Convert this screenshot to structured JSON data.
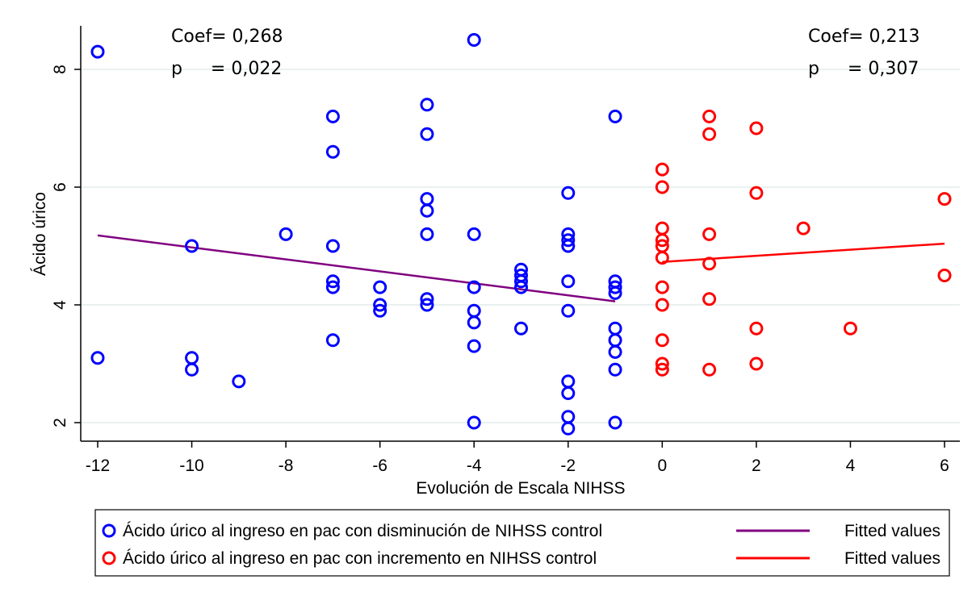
{
  "chart_data": {
    "type": "scatter",
    "xlabel": "Evolución de Escala NIHSS",
    "ylabel": "Ácido úrico",
    "xlim": [
      -12,
      6
    ],
    "ylim": [
      1.8,
      8.7
    ],
    "xticks": [
      "-12",
      "-10",
      "-8",
      "-6",
      "-4",
      "-2",
      "0",
      "2",
      "4",
      "6"
    ],
    "yticks": [
      "2",
      "4",
      "6",
      "8"
    ],
    "grid": "horizontal",
    "series": [
      {
        "name": "Ácido úrico al ingreso en pac con disminución de NIHSS control",
        "color": "#0000ff",
        "marker": "hollow-circle",
        "points": [
          [
            -12,
            8.3
          ],
          [
            -12,
            3.1
          ],
          [
            -10,
            5.0
          ],
          [
            -10,
            3.1
          ],
          [
            -10,
            2.9
          ],
          [
            -9,
            2.7
          ],
          [
            -8,
            5.2
          ],
          [
            -7,
            7.2
          ],
          [
            -7,
            6.6
          ],
          [
            -7,
            5.0
          ],
          [
            -7,
            4.4
          ],
          [
            -7,
            4.3
          ],
          [
            -7,
            3.4
          ],
          [
            -6,
            4.3
          ],
          [
            -6,
            4.0
          ],
          [
            -6,
            3.9
          ],
          [
            -5,
            7.4
          ],
          [
            -5,
            6.9
          ],
          [
            -5,
            5.8
          ],
          [
            -5,
            5.6
          ],
          [
            -5,
            5.2
          ],
          [
            -5,
            4.1
          ],
          [
            -5,
            4.0
          ],
          [
            -4,
            8.5
          ],
          [
            -4,
            5.2
          ],
          [
            -4,
            4.3
          ],
          [
            -4,
            3.9
          ],
          [
            -4,
            3.7
          ],
          [
            -4,
            3.3
          ],
          [
            -4,
            2.0
          ],
          [
            -3,
            4.6
          ],
          [
            -3,
            4.5
          ],
          [
            -3,
            4.4
          ],
          [
            -3,
            4.3
          ],
          [
            -3,
            3.6
          ],
          [
            -2,
            5.9
          ],
          [
            -2,
            5.2
          ],
          [
            -2,
            5.1
          ],
          [
            -2,
            5.0
          ],
          [
            -2,
            4.4
          ],
          [
            -2,
            3.9
          ],
          [
            -2,
            2.7
          ],
          [
            -2,
            2.5
          ],
          [
            -2,
            2.1
          ],
          [
            -2,
            1.9
          ],
          [
            -1,
            7.2
          ],
          [
            -1,
            4.4
          ],
          [
            -1,
            4.3
          ],
          [
            -1,
            4.2
          ],
          [
            -1,
            3.6
          ],
          [
            -1,
            3.4
          ],
          [
            -1,
            3.2
          ],
          [
            -1,
            2.9
          ],
          [
            -1,
            2.0
          ]
        ]
      },
      {
        "name": "Ácido úrico al ingreso en pac con incremento en NIHSS control",
        "color": "#ff0000",
        "marker": "hollow-circle",
        "points": [
          [
            0,
            6.3
          ],
          [
            0,
            6.0
          ],
          [
            0,
            5.3
          ],
          [
            0,
            5.1
          ],
          [
            0,
            5.0
          ],
          [
            0,
            4.8
          ],
          [
            0,
            4.3
          ],
          [
            0,
            4.0
          ],
          [
            0,
            3.4
          ],
          [
            0,
            3.0
          ],
          [
            0,
            2.9
          ],
          [
            1,
            7.2
          ],
          [
            1,
            6.9
          ],
          [
            1,
            5.2
          ],
          [
            1,
            4.7
          ],
          [
            1,
            4.1
          ],
          [
            1,
            2.9
          ],
          [
            2,
            7.0
          ],
          [
            2,
            5.9
          ],
          [
            2,
            3.6
          ],
          [
            2,
            3.0
          ],
          [
            3,
            5.3
          ],
          [
            4,
            3.6
          ],
          [
            6,
            5.8
          ],
          [
            6,
            4.5
          ]
        ]
      }
    ],
    "fits": [
      {
        "name": "Fitted values",
        "color": "#800080",
        "x": [
          -12,
          -1
        ],
        "y": [
          5.18,
          4.06
        ]
      },
      {
        "name": "Fitted values",
        "color": "#ff0000",
        "x": [
          0,
          6
        ],
        "y": [
          4.73,
          5.04
        ]
      }
    ],
    "annotations": {
      "left": {
        "coef": "Coef= 0,268",
        "p": "p     = 0,022"
      },
      "right": {
        "coef": "Coef= 0,213",
        "p": "p     = 0,307"
      }
    },
    "legend_position": "bottom"
  }
}
